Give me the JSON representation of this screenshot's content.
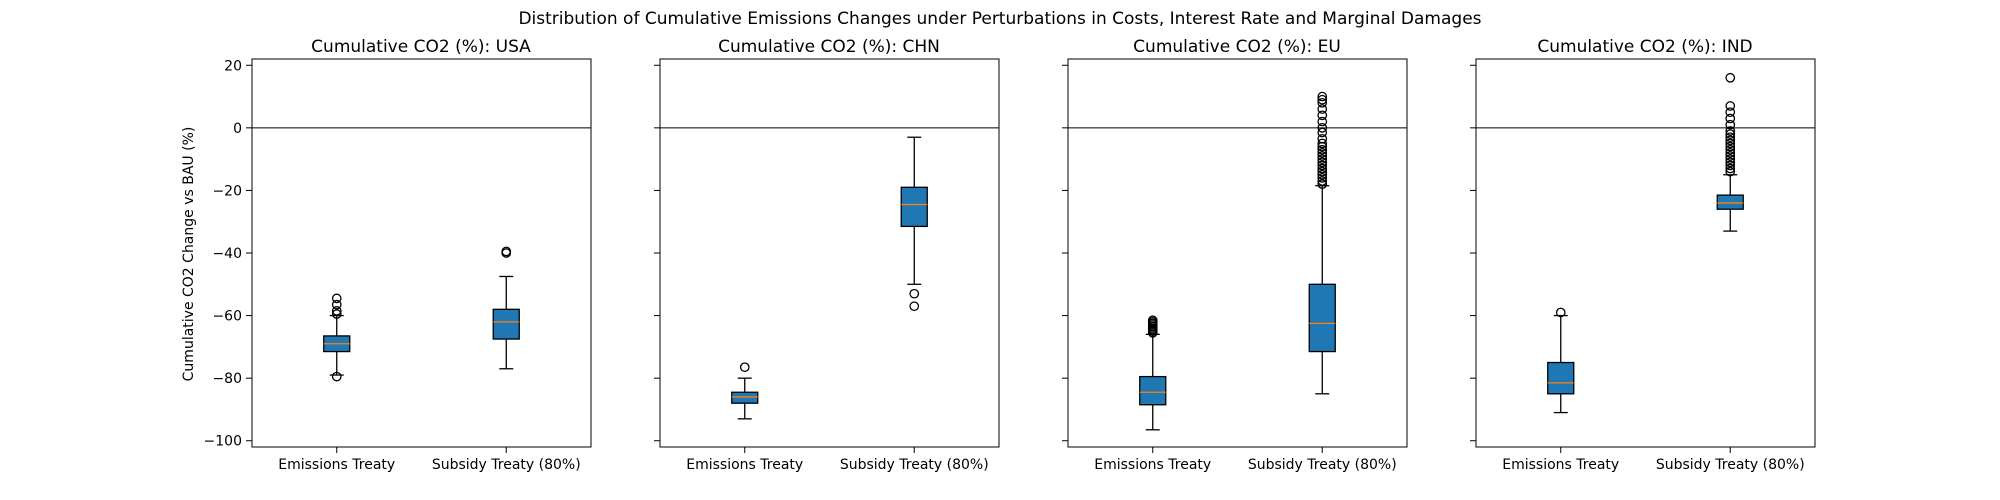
{
  "figure": {
    "title": "Distribution of Cumulative Emissions Changes under Perturbations in Costs, Interest Rate and Marginal Damages"
  },
  "style": {
    "box_fill": "#1f77b4",
    "median_color": "#ff7f0e",
    "edge_color": "#000000"
  },
  "chart_data": [
    {
      "type": "box",
      "title": "Cumulative CO2 (%): USA",
      "ylabel": "Cumulative CO2 Change vs BAU (%)",
      "ylim": [
        -102,
        22
      ],
      "yticks": [
        20,
        0,
        -20,
        -40,
        -60,
        -80,
        -100
      ],
      "reference_line": 0,
      "categories": [
        "Emissions Treaty",
        "Subsidy Treaty (80%)"
      ],
      "boxes": [
        {
          "whisker_low": -79,
          "q1": -71.5,
          "median": -69,
          "q3": -66.5,
          "whisker_high": -60,
          "outliers": [
            -54.5,
            -56.5,
            -58.5,
            -59.5,
            -79.5
          ]
        },
        {
          "whisker_low": -77,
          "q1": -67.5,
          "median": -62,
          "q3": -58,
          "whisker_high": -47.5,
          "outliers": [
            -39.5,
            -40
          ]
        }
      ]
    },
    {
      "type": "box",
      "title": "Cumulative CO2 (%): CHN",
      "ylim": [
        -102,
        22
      ],
      "yticks": [
        20,
        0,
        -20,
        -40,
        -60,
        -80,
        -100
      ],
      "reference_line": 0,
      "categories": [
        "Emissions Treaty",
        "Subsidy Treaty (80%)"
      ],
      "boxes": [
        {
          "whisker_low": -93,
          "q1": -88,
          "median": -86,
          "q3": -84.5,
          "whisker_high": -80,
          "outliers": [
            -76.5
          ]
        },
        {
          "whisker_low": -50,
          "q1": -31.5,
          "median": -24.5,
          "q3": -19,
          "whisker_high": -3,
          "outliers": [
            -53,
            -57
          ]
        }
      ]
    },
    {
      "type": "box",
      "title": "Cumulative CO2 (%): EU",
      "ylim": [
        -102,
        22
      ],
      "yticks": [
        20,
        0,
        -20,
        -40,
        -60,
        -80,
        -100
      ],
      "reference_line": 0,
      "categories": [
        "Emissions Treaty",
        "Subsidy Treaty (80%)"
      ],
      "boxes": [
        {
          "whisker_low": -96.5,
          "q1": -88.5,
          "median": -84.5,
          "q3": -79.5,
          "whisker_high": -66,
          "outliers": [
            -61.5,
            -62,
            -62.5,
            -63,
            -63.5,
            -64,
            -64.5,
            -65,
            -65.5
          ]
        },
        {
          "whisker_low": -85,
          "q1": -71.5,
          "median": -62.5,
          "q3": -50,
          "whisker_high": -18.5,
          "outliers": [
            10,
            9,
            8,
            6,
            4,
            2,
            0,
            -1.5,
            -3.5,
            -5,
            -6,
            -7,
            -8,
            -9,
            -10,
            -11,
            -12,
            -13,
            -14,
            -15,
            -16,
            -17,
            -18
          ]
        }
      ]
    },
    {
      "type": "box",
      "title": "Cumulative CO2 (%): IND",
      "ylim": [
        -102,
        22
      ],
      "yticks": [
        20,
        0,
        -20,
        -40,
        -60,
        -80,
        -100
      ],
      "reference_line": 0,
      "categories": [
        "Emissions Treaty",
        "Subsidy Treaty (80%)"
      ],
      "boxes": [
        {
          "whisker_low": -91,
          "q1": -85,
          "median": -81.5,
          "q3": -75,
          "whisker_high": -60,
          "outliers": [
            -59
          ]
        },
        {
          "whisker_low": -33,
          "q1": -26,
          "median": -24,
          "q3": -21.5,
          "whisker_high": -15,
          "outliers": [
            16,
            7,
            5,
            3,
            1,
            -1,
            -2,
            -3,
            -4,
            -5,
            -6,
            -7,
            -8,
            -9,
            -10,
            -11,
            -12,
            -13,
            -14
          ]
        }
      ]
    }
  ]
}
